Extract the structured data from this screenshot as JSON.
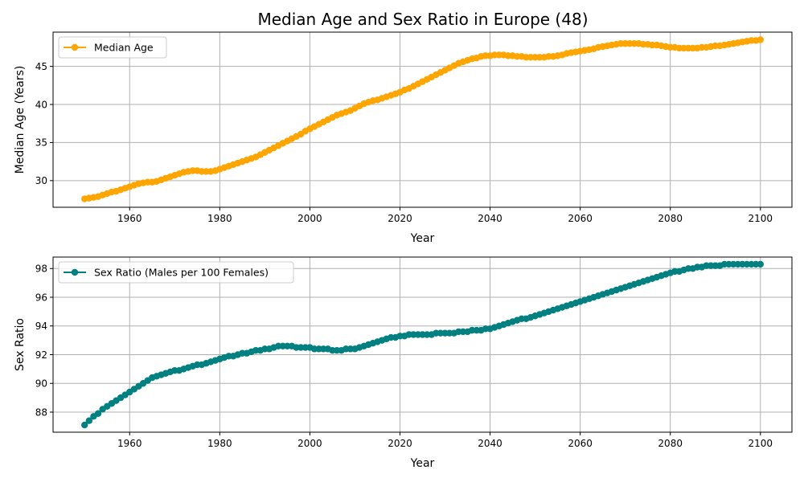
{
  "chart_data": [
    {
      "type": "line",
      "title": "Median Age and Sex Ratio in Europe (48)",
      "xlabel": "Year",
      "ylabel": "Median Age (Years)",
      "xlim": [
        1943,
        2107
      ],
      "ylim": [
        26.5,
        49.5
      ],
      "xticks": [
        1960,
        1980,
        2000,
        2020,
        2040,
        2060,
        2080,
        2100
      ],
      "yticks": [
        30,
        35,
        40,
        45
      ],
      "grid": true,
      "legend": "top-left",
      "series": [
        {
          "name": "Median Age",
          "color": "#FFA500",
          "marker": "circle",
          "x": [
            1950,
            1951,
            1952,
            1953,
            1954,
            1955,
            1956,
            1957,
            1958,
            1959,
            1960,
            1961,
            1962,
            1963,
            1964,
            1965,
            1966,
            1967,
            1968,
            1969,
            1970,
            1971,
            1972,
            1973,
            1974,
            1975,
            1976,
            1977,
            1978,
            1979,
            1980,
            1981,
            1982,
            1983,
            1984,
            1985,
            1986,
            1987,
            1988,
            1989,
            1990,
            1991,
            1992,
            1993,
            1994,
            1995,
            1996,
            1997,
            1998,
            1999,
            2000,
            2001,
            2002,
            2003,
            2004,
            2005,
            2006,
            2007,
            2008,
            2009,
            2010,
            2011,
            2012,
            2013,
            2014,
            2015,
            2016,
            2017,
            2018,
            2019,
            2020,
            2021,
            2022,
            2023,
            2024,
            2025,
            2026,
            2027,
            2028,
            2029,
            2030,
            2031,
            2032,
            2033,
            2034,
            2035,
            2036,
            2037,
            2038,
            2039,
            2040,
            2041,
            2042,
            2043,
            2044,
            2045,
            2046,
            2047,
            2048,
            2049,
            2050,
            2051,
            2052,
            2053,
            2054,
            2055,
            2056,
            2057,
            2058,
            2059,
            2060,
            2061,
            2062,
            2063,
            2064,
            2065,
            2066,
            2067,
            2068,
            2069,
            2070,
            2071,
            2072,
            2073,
            2074,
            2075,
            2076,
            2077,
            2078,
            2079,
            2080,
            2081,
            2082,
            2083,
            2084,
            2085,
            2086,
            2087,
            2088,
            2089,
            2090,
            2091,
            2092,
            2093,
            2094,
            2095,
            2096,
            2097,
            2098,
            2099,
            2100
          ],
          "values": [
            27.6,
            27.7,
            27.8,
            27.9,
            28.1,
            28.3,
            28.5,
            28.6,
            28.8,
            29.0,
            29.2,
            29.4,
            29.6,
            29.7,
            29.8,
            29.8,
            29.9,
            30.1,
            30.3,
            30.5,
            30.7,
            30.9,
            31.1,
            31.2,
            31.3,
            31.3,
            31.2,
            31.2,
            31.2,
            31.3,
            31.5,
            31.7,
            31.9,
            32.1,
            32.3,
            32.5,
            32.7,
            32.9,
            33.1,
            33.4,
            33.7,
            34.0,
            34.3,
            34.6,
            34.9,
            35.2,
            35.5,
            35.8,
            36.1,
            36.5,
            36.8,
            37.1,
            37.4,
            37.7,
            38.0,
            38.3,
            38.6,
            38.8,
            39.0,
            39.2,
            39.5,
            39.8,
            40.1,
            40.3,
            40.5,
            40.6,
            40.8,
            41.0,
            41.2,
            41.4,
            41.6,
            41.9,
            42.1,
            42.4,
            42.7,
            43.0,
            43.3,
            43.6,
            43.9,
            44.2,
            44.5,
            44.8,
            45.1,
            45.4,
            45.6,
            45.8,
            46.0,
            46.1,
            46.3,
            46.4,
            46.4,
            46.5,
            46.5,
            46.5,
            46.4,
            46.4,
            46.3,
            46.3,
            46.2,
            46.2,
            46.2,
            46.2,
            46.2,
            46.3,
            46.3,
            46.4,
            46.5,
            46.7,
            46.8,
            46.9,
            47.0,
            47.1,
            47.2,
            47.3,
            47.5,
            47.6,
            47.7,
            47.8,
            47.9,
            48.0,
            48.0,
            48.0,
            48.0,
            48.0,
            47.9,
            47.9,
            47.8,
            47.8,
            47.7,
            47.6,
            47.5,
            47.5,
            47.4,
            47.4,
            47.4,
            47.4,
            47.4,
            47.5,
            47.5,
            47.6,
            47.7,
            47.7,
            47.8,
            47.9,
            48.0,
            48.1,
            48.2,
            48.3,
            48.4,
            48.4,
            48.5
          ]
        }
      ]
    },
    {
      "type": "line",
      "xlabel": "Year",
      "ylabel": "Sex Ratio",
      "xlim": [
        1943,
        2107
      ],
      "ylim": [
        86.6,
        98.8
      ],
      "xticks": [
        1960,
        1980,
        2000,
        2020,
        2040,
        2060,
        2080,
        2100
      ],
      "yticks": [
        88,
        90,
        92,
        94,
        96,
        98
      ],
      "grid": true,
      "legend": "top-left",
      "series": [
        {
          "name": "Sex Ratio (Males per 100 Females)",
          "color": "#008080",
          "marker": "circle",
          "x": [
            1950,
            1951,
            1952,
            1953,
            1954,
            1955,
            1956,
            1957,
            1958,
            1959,
            1960,
            1961,
            1962,
            1963,
            1964,
            1965,
            1966,
            1967,
            1968,
            1969,
            1970,
            1971,
            1972,
            1973,
            1974,
            1975,
            1976,
            1977,
            1978,
            1979,
            1980,
            1981,
            1982,
            1983,
            1984,
            1985,
            1986,
            1987,
            1988,
            1989,
            1990,
            1991,
            1992,
            1993,
            1994,
            1995,
            1996,
            1997,
            1998,
            1999,
            2000,
            2001,
            2002,
            2003,
            2004,
            2005,
            2006,
            2007,
            2008,
            2009,
            2010,
            2011,
            2012,
            2013,
            2014,
            2015,
            2016,
            2017,
            2018,
            2019,
            2020,
            2021,
            2022,
            2023,
            2024,
            2025,
            2026,
            2027,
            2028,
            2029,
            2030,
            2031,
            2032,
            2033,
            2034,
            2035,
            2036,
            2037,
            2038,
            2039,
            2040,
            2041,
            2042,
            2043,
            2044,
            2045,
            2046,
            2047,
            2048,
            2049,
            2050,
            2051,
            2052,
            2053,
            2054,
            2055,
            2056,
            2057,
            2058,
            2059,
            2060,
            2061,
            2062,
            2063,
            2064,
            2065,
            2066,
            2067,
            2068,
            2069,
            2070,
            2071,
            2072,
            2073,
            2074,
            2075,
            2076,
            2077,
            2078,
            2079,
            2080,
            2081,
            2082,
            2083,
            2084,
            2085,
            2086,
            2087,
            2088,
            2089,
            2090,
            2091,
            2092,
            2093,
            2094,
            2095,
            2096,
            2097,
            2098,
            2099,
            2100
          ],
          "values": [
            87.1,
            87.4,
            87.7,
            87.9,
            88.2,
            88.4,
            88.6,
            88.8,
            89.0,
            89.2,
            89.4,
            89.6,
            89.8,
            90.0,
            90.2,
            90.4,
            90.5,
            90.6,
            90.7,
            90.8,
            90.9,
            90.9,
            91.0,
            91.1,
            91.2,
            91.3,
            91.3,
            91.4,
            91.5,
            91.6,
            91.7,
            91.8,
            91.9,
            91.9,
            92.0,
            92.1,
            92.1,
            92.2,
            92.3,
            92.3,
            92.4,
            92.4,
            92.5,
            92.6,
            92.6,
            92.6,
            92.6,
            92.5,
            92.5,
            92.5,
            92.5,
            92.4,
            92.4,
            92.4,
            92.4,
            92.3,
            92.3,
            92.3,
            92.4,
            92.4,
            92.4,
            92.5,
            92.6,
            92.7,
            92.8,
            92.9,
            93.0,
            93.1,
            93.2,
            93.2,
            93.3,
            93.3,
            93.4,
            93.4,
            93.4,
            93.4,
            93.4,
            93.4,
            93.5,
            93.5,
            93.5,
            93.5,
            93.5,
            93.6,
            93.6,
            93.6,
            93.7,
            93.7,
            93.7,
            93.8,
            93.8,
            93.9,
            94.0,
            94.1,
            94.2,
            94.3,
            94.4,
            94.5,
            94.5,
            94.6,
            94.7,
            94.8,
            94.9,
            95.0,
            95.1,
            95.2,
            95.3,
            95.4,
            95.5,
            95.6,
            95.7,
            95.8,
            95.9,
            96.0,
            96.1,
            96.2,
            96.3,
            96.4,
            96.5,
            96.6,
            96.7,
            96.8,
            96.9,
            97.0,
            97.1,
            97.2,
            97.3,
            97.4,
            97.5,
            97.6,
            97.7,
            97.8,
            97.8,
            97.9,
            98.0,
            98.0,
            98.1,
            98.1,
            98.2,
            98.2,
            98.2,
            98.2,
            98.3,
            98.3,
            98.3,
            98.3,
            98.3,
            98.3,
            98.3,
            98.3,
            98.3
          ]
        }
      ]
    }
  ]
}
